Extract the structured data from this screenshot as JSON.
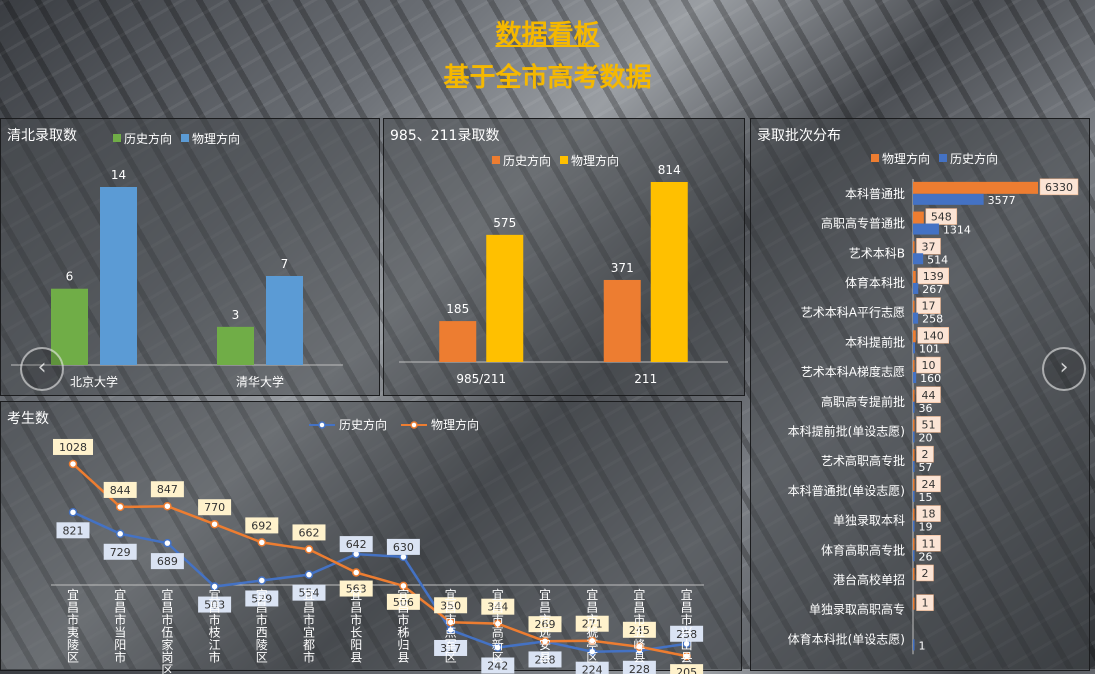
{
  "header": {
    "title": "数据看板",
    "subtitle": "基于全市高考数据"
  },
  "colors": {
    "history": "#ed7d31",
    "physics": "#ffc000",
    "green": "#70ad47",
    "blue": "#5b9bd5",
    "navy": "#4472c4",
    "title": "#f5b800"
  },
  "nav": {
    "prev_icon": "‹",
    "next_icon": "›"
  },
  "chart_data": [
    {
      "type": "bar",
      "title": "清北录取数",
      "categories": [
        "北京大学",
        "清华大学"
      ],
      "series": [
        {
          "name": "历史方向",
          "values": [
            6,
            3
          ]
        },
        {
          "name": "物理方向",
          "values": [
            14,
            7
          ]
        }
      ],
      "legend": "top"
    },
    {
      "type": "bar",
      "title": "985、211录取数",
      "categories": [
        "985/211",
        "211"
      ],
      "series": [
        {
          "name": "历史方向",
          "values": [
            185,
            371
          ]
        },
        {
          "name": "物理方向",
          "values": [
            575,
            814
          ]
        }
      ],
      "legend": "top"
    },
    {
      "type": "bar",
      "orientation": "horizontal",
      "title": "录取批次分布",
      "categories": [
        "本科普通批",
        "高职高专普通批",
        "艺术本科B",
        "体育本科批",
        "艺术本科A平行志愿",
        "本科提前批",
        "艺术本科A梯度志愿",
        "高职高专提前批",
        "本科提前批(单设志愿)",
        "艺术高职高专批",
        "本科普通批(单设志愿)",
        "单独录取本科",
        "体育高职高专批",
        "港台高校单招",
        "单独录取高职高专",
        "体育本科批(单设志愿)"
      ],
      "series": [
        {
          "name": "物理方向",
          "values": [
            6330,
            548,
            37,
            139,
            17,
            140,
            10,
            44,
            51,
            2,
            24,
            18,
            11,
            2,
            1,
            null
          ]
        },
        {
          "name": "历史方向",
          "values": [
            3577,
            1314,
            514,
            267,
            258,
            101,
            160,
            36,
            20,
            57,
            15,
            19,
            26,
            null,
            null,
            1
          ]
        }
      ],
      "legend": "top"
    },
    {
      "type": "line",
      "title": "考生数",
      "categories": [
        "宜昌市夷陵区",
        "宜昌市当阳市",
        "宜昌市伍家岗区",
        "宜昌市枝江市",
        "宜昌市西陵区",
        "宜昌市宜都市",
        "宜昌市长阳县",
        "宜昌市秭归县",
        "宜昌市点军区",
        "宜昌市高新区",
        "宜昌市远安县",
        "宜昌市猇亭区",
        "宜昌市五峰县",
        "宜昌市兴山县"
      ],
      "series": [
        {
          "name": "历史方向",
          "values": [
            821,
            729,
            689,
            503,
            529,
            554,
            642,
            630,
            317,
            242,
            268,
            224,
            228,
            258
          ]
        },
        {
          "name": "物理方向",
          "values": [
            1028,
            844,
            847,
            770,
            692,
            662,
            563,
            506,
            350,
            344,
            269,
            271,
            245,
            205
          ]
        }
      ],
      "legend": "top"
    }
  ]
}
